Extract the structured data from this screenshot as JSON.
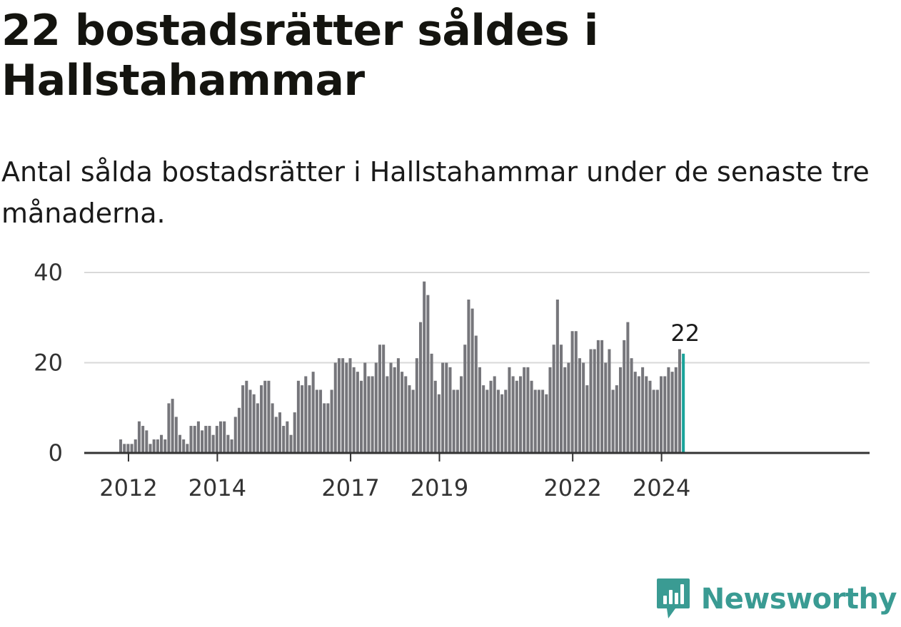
{
  "title": "22 bostadsrätter såldes i Hallstahammar",
  "subtitle": "Antal sålda bostadsrätter i Hallstahammar under de senaste tre månaderna.",
  "brand": {
    "name": "Newsworthy",
    "icon": "newsworthy-logo-icon",
    "color": "#3a9b93"
  },
  "chart_data": {
    "type": "bar",
    "start_month": "2011-11",
    "values": [
      3,
      2,
      2,
      2,
      3,
      7,
      6,
      5,
      2,
      3,
      3,
      4,
      3,
      11,
      12,
      8,
      4,
      3,
      2,
      6,
      6,
      7,
      5,
      6,
      6,
      4,
      6,
      7,
      7,
      4,
      3,
      8,
      10,
      15,
      16,
      14,
      13,
      11,
      15,
      16,
      16,
      11,
      8,
      9,
      6,
      7,
      4,
      9,
      16,
      15,
      17,
      15,
      18,
      14,
      14,
      11,
      11,
      14,
      20,
      21,
      21,
      20,
      21,
      19,
      18,
      16,
      20,
      17,
      17,
      20,
      24,
      24,
      17,
      20,
      19,
      21,
      18,
      17,
      15,
      14,
      21,
      29,
      38,
      35,
      22,
      16,
      13,
      20,
      20,
      19,
      14,
      14,
      17,
      24,
      34,
      32,
      26,
      19,
      15,
      14,
      16,
      17,
      14,
      13,
      14,
      19,
      17,
      16,
      17,
      19,
      19,
      16,
      14,
      14,
      14,
      13,
      19,
      24,
      34,
      24,
      19,
      20,
      27,
      27,
      21,
      20,
      15,
      23,
      23,
      25,
      25,
      20,
      23,
      14,
      15,
      19,
      25,
      29,
      21,
      18,
      17,
      19,
      17,
      16,
      14,
      14,
      17,
      17,
      19,
      18,
      19,
      23,
      22
    ],
    "x_ticks": [
      {
        "label": "2012",
        "month": "2012-01"
      },
      {
        "label": "2014",
        "month": "2014-01"
      },
      {
        "label": "2017",
        "month": "2017-01"
      },
      {
        "label": "2019",
        "month": "2019-01"
      },
      {
        "label": "2022",
        "month": "2022-01"
      },
      {
        "label": "2024",
        "month": "2024-01"
      }
    ],
    "y_ticks": [
      "0",
      "20",
      "40"
    ],
    "ylim": [
      0,
      40
    ],
    "last_value_label": "22",
    "bar_color": "#76767b",
    "highlight_color": "#1aa39a",
    "grid": true,
    "xlabel": "",
    "ylabel": ""
  }
}
